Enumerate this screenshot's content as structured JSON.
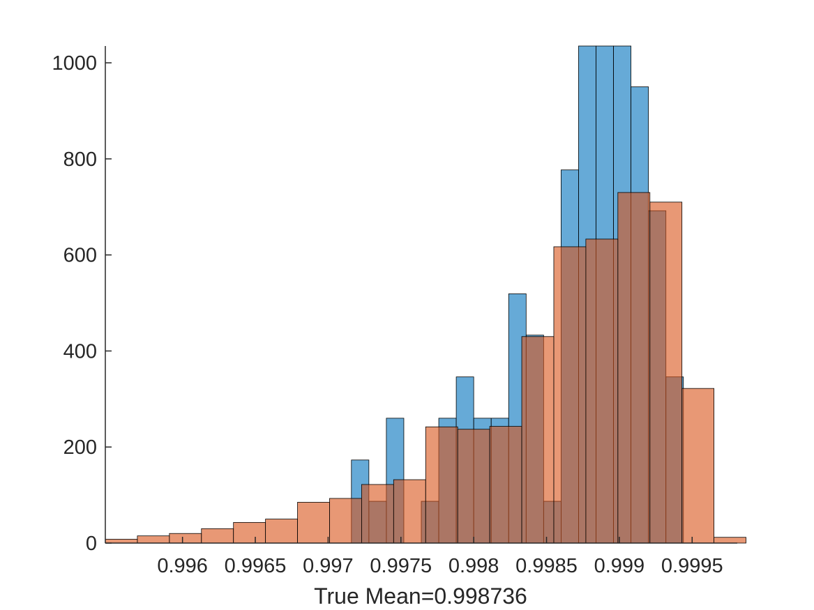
{
  "chart_data": {
    "type": "histogram",
    "title": "",
    "xlabel": "True Mean=0.998736",
    "ylabel": "",
    "xlim": [
      0.99547,
      0.99981
    ],
    "ylim": [
      0,
      1035
    ],
    "grid": false,
    "legend": null,
    "xticks": [
      0.996,
      0.9965,
      0.997,
      0.9975,
      0.998,
      0.9985,
      0.999,
      0.9995
    ],
    "xtick_labels": [
      "0.996",
      "0.9965",
      "0.997",
      "0.9975",
      "0.998",
      "0.9985",
      "0.999",
      "0.9995"
    ],
    "yticks": [
      0,
      200,
      400,
      600,
      800,
      1000
    ],
    "ytick_labels": [
      "0",
      "200",
      "400",
      "600",
      "800",
      "1000"
    ],
    "series": [
      {
        "name": "series 1",
        "color": "#0072BD",
        "opacity": 0.6,
        "bins": [
          {
            "x0": 0.99716,
            "x1": 0.99728,
            "count": 173
          },
          {
            "x0": 0.99728,
            "x1": 0.9974,
            "count": 87
          },
          {
            "x0": 0.9974,
            "x1": 0.99752,
            "count": 260
          },
          {
            "x0": 0.99752,
            "x1": 0.99764,
            "count": 0
          },
          {
            "x0": 0.99764,
            "x1": 0.99776,
            "count": 87
          },
          {
            "x0": 0.99776,
            "x1": 0.99788,
            "count": 260
          },
          {
            "x0": 0.99788,
            "x1": 0.998,
            "count": 346
          },
          {
            "x0": 0.998,
            "x1": 0.99812,
            "count": 260
          },
          {
            "x0": 0.99812,
            "x1": 0.99824,
            "count": 260
          },
          {
            "x0": 0.99824,
            "x1": 0.99836,
            "count": 519
          },
          {
            "x0": 0.99836,
            "x1": 0.99848,
            "count": 433
          },
          {
            "x0": 0.99848,
            "x1": 0.9986,
            "count": 87
          },
          {
            "x0": 0.9986,
            "x1": 0.99872,
            "count": 777
          },
          {
            "x0": 0.99872,
            "x1": 0.99884,
            "count": 1035
          },
          {
            "x0": 0.99884,
            "x1": 0.99896,
            "count": 1035
          },
          {
            "x0": 0.99896,
            "x1": 0.99908,
            "count": 1035
          },
          {
            "x0": 0.99908,
            "x1": 0.9992,
            "count": 950
          },
          {
            "x0": 0.9992,
            "x1": 0.99932,
            "count": 692
          },
          {
            "x0": 0.99932,
            "x1": 0.99944,
            "count": 346
          }
        ]
      },
      {
        "name": "series 2",
        "color": "#D95319",
        "opacity": 0.6,
        "bins": [
          {
            "x0": 0.99547,
            "x1": 0.99569,
            "count": 8
          },
          {
            "x0": 0.99569,
            "x1": 0.99591,
            "count": 15
          },
          {
            "x0": 0.99591,
            "x1": 0.99613,
            "count": 20
          },
          {
            "x0": 0.99613,
            "x1": 0.99635,
            "count": 30
          },
          {
            "x0": 0.99635,
            "x1": 0.99657,
            "count": 43
          },
          {
            "x0": 0.99657,
            "x1": 0.99679,
            "count": 50
          },
          {
            "x0": 0.99679,
            "x1": 0.99701,
            "count": 85
          },
          {
            "x0": 0.99701,
            "x1": 0.99723,
            "count": 93
          },
          {
            "x0": 0.99723,
            "x1": 0.99745,
            "count": 122
          },
          {
            "x0": 0.99745,
            "x1": 0.99767,
            "count": 132
          },
          {
            "x0": 0.99767,
            "x1": 0.99789,
            "count": 242
          },
          {
            "x0": 0.99789,
            "x1": 0.99811,
            "count": 237
          },
          {
            "x0": 0.99811,
            "x1": 0.99833,
            "count": 243
          },
          {
            "x0": 0.99833,
            "x1": 0.99855,
            "count": 430
          },
          {
            "x0": 0.99855,
            "x1": 0.99877,
            "count": 617
          },
          {
            "x0": 0.99877,
            "x1": 0.99899,
            "count": 633
          },
          {
            "x0": 0.99899,
            "x1": 0.99921,
            "count": 730
          },
          {
            "x0": 0.99921,
            "x1": 0.99943,
            "count": 710
          },
          {
            "x0": 0.99943,
            "x1": 0.99965,
            "count": 322
          },
          {
            "x0": 0.99965,
            "x1": 0.99987,
            "count": 12
          }
        ]
      }
    ]
  }
}
